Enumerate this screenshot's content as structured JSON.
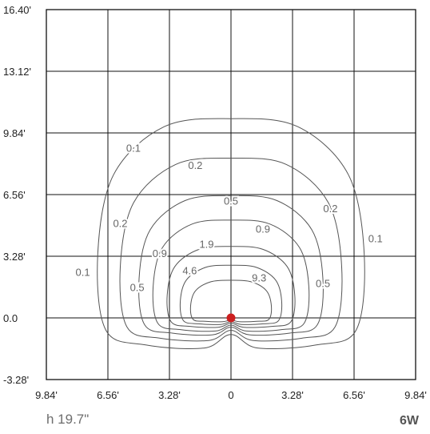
{
  "chart_data": {
    "type": "contour",
    "title": "",
    "xlabel": "",
    "ylabel": "",
    "x_ticks": [
      "9.84'",
      "6.56'",
      "3.28'",
      "0",
      "3.28'",
      "6.56'",
      "9.84'"
    ],
    "y_ticks": [
      "16.40'",
      "13.12'",
      "9.84'",
      "6.56'",
      "3.28'",
      "0.0",
      "-3.28'"
    ],
    "xlim": [
      -9.84,
      9.84
    ],
    "ylim": [
      -3.28,
      16.4
    ],
    "grid": true,
    "source_point": {
      "x": 0,
      "y": 0
    },
    "contours": [
      {
        "level": "0.1",
        "label": "0.1",
        "width": 14.2,
        "top": 10.6,
        "bottom": -1.6
      },
      {
        "level": "0.2",
        "label": "0.2",
        "width": 11.8,
        "top": 8.5,
        "bottom": -1.2
      },
      {
        "level": "0.5",
        "label": "0.5",
        "width": 9.8,
        "top": 6.5,
        "bottom": -0.9
      },
      {
        "level": "0.9",
        "label": "0.9",
        "width": 8.3,
        "top": 5.2,
        "bottom": -0.7
      },
      {
        "level": "1.9",
        "label": "1.9",
        "width": 6.8,
        "top": 3.8,
        "bottom": -0.5
      },
      {
        "level": "4.6",
        "label": "4.6",
        "width": 5.4,
        "top": 2.8,
        "bottom": -0.35
      },
      {
        "level": "9.3",
        "label": "9.3",
        "width": 4.3,
        "top": 2.0,
        "bottom": -0.2
      }
    ],
    "contour_labels": [
      {
        "text": "0.1",
        "x": -5.2,
        "y": 9.0
      },
      {
        "text": "0.1",
        "x": 7.7,
        "y": 4.2
      },
      {
        "text": "0.1",
        "x": -7.9,
        "y": 2.4
      },
      {
        "text": "0.2",
        "x": -1.9,
        "y": 8.1
      },
      {
        "text": "0.2",
        "x": 5.3,
        "y": 5.8
      },
      {
        "text": "0.2",
        "x": -5.9,
        "y": 5.0
      },
      {
        "text": "0.5",
        "x": 0,
        "y": 6.2
      },
      {
        "text": "0.5",
        "x": 4.9,
        "y": 1.8
      },
      {
        "text": "0.5",
        "x": -5.0,
        "y": 1.6
      },
      {
        "text": "0.9",
        "x": 1.7,
        "y": 4.7
      },
      {
        "text": "0.9",
        "x": -3.8,
        "y": 3.4
      },
      {
        "text": "1.9",
        "x": -1.3,
        "y": 3.9
      },
      {
        "text": "4.6",
        "x": -2.2,
        "y": 2.5
      },
      {
        "text": "9.3",
        "x": 1.5,
        "y": 2.1
      }
    ],
    "colors": {
      "source_point": "#cc1f1f",
      "contour_line": "#555555",
      "grid_line": "#111111"
    }
  },
  "footer": {
    "height_label": "h 19.7\"",
    "wattage_label": "6W"
  }
}
